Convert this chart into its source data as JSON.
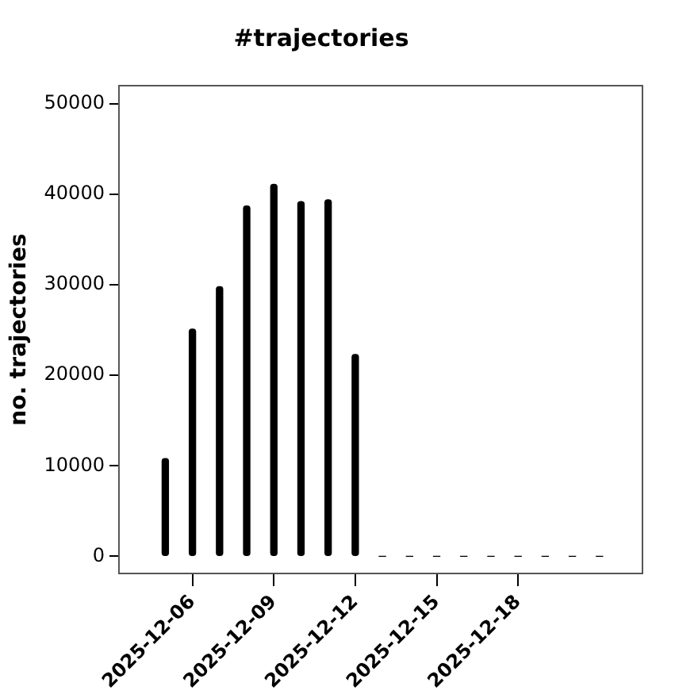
{
  "chart_data": {
    "type": "bar",
    "title": "#trajectories",
    "ylabel": "no. trajectories",
    "x": [
      "2025-12-05",
      "2025-12-06",
      "2025-12-07",
      "2025-12-08",
      "2025-12-09",
      "2025-12-10",
      "2025-12-11",
      "2025-12-12",
      "2025-12-13",
      "2025-12-14",
      "2025-12-15",
      "2025-12-16",
      "2025-12-17",
      "2025-12-18",
      "2025-12-19",
      "2025-12-20",
      "2025-12-21"
    ],
    "values": [
      10800,
      25100,
      29800,
      38700,
      41100,
      39200,
      39400,
      22300,
      0,
      0,
      0,
      0,
      0,
      0,
      0,
      0,
      0
    ],
    "color": "#000000",
    "xlim": [
      "2025-12-03T07:00",
      "2025-12-22T14:00"
    ],
    "xticks": [
      "2025-12-06",
      "2025-12-09",
      "2025-12-12",
      "2025-12-15",
      "2025-12-18"
    ],
    "ylim": [
      -1900,
      52000
    ],
    "yticks": [
      0,
      10000,
      20000,
      30000,
      40000,
      50000
    ],
    "grid": false,
    "legend": false
  }
}
